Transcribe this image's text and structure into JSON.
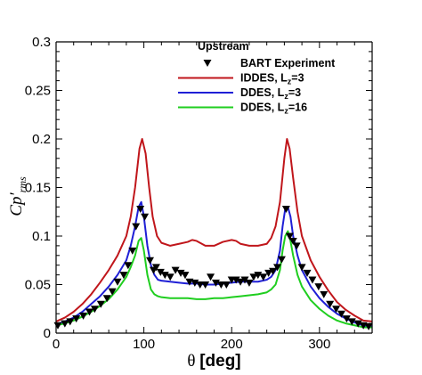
{
  "chart_data": {
    "type": "line",
    "xlabel": "θ [deg]",
    "ylabel": "Cp′rms",
    "xlim": [
      0,
      360
    ],
    "ylim": [
      0,
      0.3
    ],
    "x_ticks": [
      0,
      100,
      200,
      300
    ],
    "y_ticks": [
      0,
      0.05,
      0.1,
      0.15,
      0.2,
      0.25,
      0.3
    ],
    "legend_title": "Upstream",
    "legend_position": "top-right",
    "series": [
      {
        "name": "BART Experiment",
        "kind": "scatter",
        "marker": "triangle-down",
        "color": "#000000",
        "x": [
          2,
          10,
          16,
          23,
          31,
          38,
          44,
          51,
          58,
          64,
          70,
          77,
          82,
          87,
          91,
          96,
          101,
          107,
          111,
          114,
          119,
          124,
          130,
          136,
          142,
          147,
          152,
          158,
          164,
          170,
          176,
          182,
          188,
          194,
          200,
          205,
          210,
          215,
          220,
          225,
          230,
          236,
          242,
          247,
          252,
          257,
          262,
          266,
          270,
          274,
          280,
          286,
          292,
          299,
          305,
          312,
          319,
          325,
          331,
          337,
          344,
          350,
          356
        ],
        "y": [
          0.008,
          0.01,
          0.012,
          0.015,
          0.018,
          0.022,
          0.025,
          0.03,
          0.036,
          0.043,
          0.053,
          0.06,
          0.07,
          0.085,
          0.11,
          0.128,
          0.12,
          0.075,
          0.065,
          0.068,
          0.063,
          0.06,
          0.058,
          0.065,
          0.062,
          0.06,
          0.053,
          0.052,
          0.05,
          0.05,
          0.058,
          0.052,
          0.05,
          0.05,
          0.055,
          0.055,
          0.053,
          0.055,
          0.052,
          0.058,
          0.06,
          0.058,
          0.062,
          0.064,
          0.068,
          0.076,
          0.128,
          0.1,
          0.095,
          0.09,
          0.068,
          0.062,
          0.055,
          0.048,
          0.04,
          0.03,
          0.025,
          0.02,
          0.015,
          0.012,
          0.01,
          0.008,
          0.007
        ]
      },
      {
        "name": "IDDES, L_z=3",
        "kind": "line",
        "color": "#c0161b",
        "x": [
          0,
          10,
          20,
          30,
          40,
          50,
          60,
          70,
          80,
          85,
          90,
          95,
          98,
          102,
          106,
          110,
          115,
          120,
          130,
          140,
          150,
          155,
          160,
          170,
          180,
          190,
          200,
          205,
          210,
          220,
          230,
          240,
          245,
          250,
          255,
          260,
          263,
          266,
          270,
          275,
          280,
          290,
          300,
          310,
          320,
          330,
          340,
          350,
          360
        ],
        "y": [
          0.012,
          0.016,
          0.022,
          0.03,
          0.04,
          0.052,
          0.065,
          0.08,
          0.1,
          0.12,
          0.15,
          0.19,
          0.2,
          0.185,
          0.15,
          0.12,
          0.1,
          0.093,
          0.09,
          0.092,
          0.094,
          0.096,
          0.095,
          0.09,
          0.09,
          0.094,
          0.096,
          0.095,
          0.092,
          0.09,
          0.09,
          0.092,
          0.098,
          0.11,
          0.135,
          0.18,
          0.2,
          0.19,
          0.16,
          0.125,
          0.1,
          0.075,
          0.058,
          0.044,
          0.032,
          0.024,
          0.018,
          0.013,
          0.012
        ]
      },
      {
        "name": "DDES, L_z=3",
        "kind": "line",
        "color": "#1f1fd6",
        "x": [
          0,
          10,
          20,
          30,
          40,
          50,
          60,
          70,
          80,
          85,
          90,
          94,
          97,
          100,
          104,
          108,
          112,
          116,
          120,
          130,
          140,
          150,
          160,
          170,
          180,
          190,
          200,
          210,
          220,
          230,
          240,
          245,
          250,
          255,
          258,
          261,
          264,
          267,
          270,
          275,
          280,
          290,
          300,
          310,
          320,
          330,
          340,
          350,
          360
        ],
        "y": [
          0.009,
          0.012,
          0.016,
          0.022,
          0.03,
          0.038,
          0.048,
          0.06,
          0.075,
          0.09,
          0.11,
          0.13,
          0.135,
          0.12,
          0.09,
          0.07,
          0.06,
          0.055,
          0.054,
          0.053,
          0.052,
          0.051,
          0.051,
          0.05,
          0.05,
          0.051,
          0.052,
          0.053,
          0.053,
          0.053,
          0.055,
          0.058,
          0.065,
          0.085,
          0.11,
          0.128,
          0.13,
          0.12,
          0.1,
          0.08,
          0.065,
          0.048,
          0.036,
          0.027,
          0.02,
          0.015,
          0.011,
          0.008,
          0.007
        ]
      },
      {
        "name": "DDES, L_z=16",
        "kind": "line",
        "color": "#1fce1f",
        "x": [
          0,
          10,
          20,
          30,
          40,
          50,
          60,
          70,
          80,
          85,
          90,
          94,
          97,
          100,
          104,
          108,
          112,
          116,
          120,
          130,
          140,
          150,
          160,
          170,
          180,
          190,
          200,
          210,
          220,
          230,
          240,
          245,
          250,
          255,
          258,
          261,
          264,
          267,
          270,
          275,
          280,
          290,
          300,
          310,
          320,
          330,
          340,
          350,
          360
        ],
        "y": [
          0.008,
          0.01,
          0.013,
          0.017,
          0.022,
          0.028,
          0.035,
          0.045,
          0.058,
          0.068,
          0.08,
          0.095,
          0.098,
          0.085,
          0.06,
          0.045,
          0.04,
          0.038,
          0.037,
          0.036,
          0.036,
          0.036,
          0.035,
          0.035,
          0.036,
          0.036,
          0.037,
          0.038,
          0.039,
          0.04,
          0.042,
          0.045,
          0.05,
          0.065,
          0.085,
          0.1,
          0.105,
          0.095,
          0.08,
          0.06,
          0.048,
          0.034,
          0.025,
          0.018,
          0.013,
          0.01,
          0.008,
          0.006,
          0.006
        ]
      }
    ]
  }
}
